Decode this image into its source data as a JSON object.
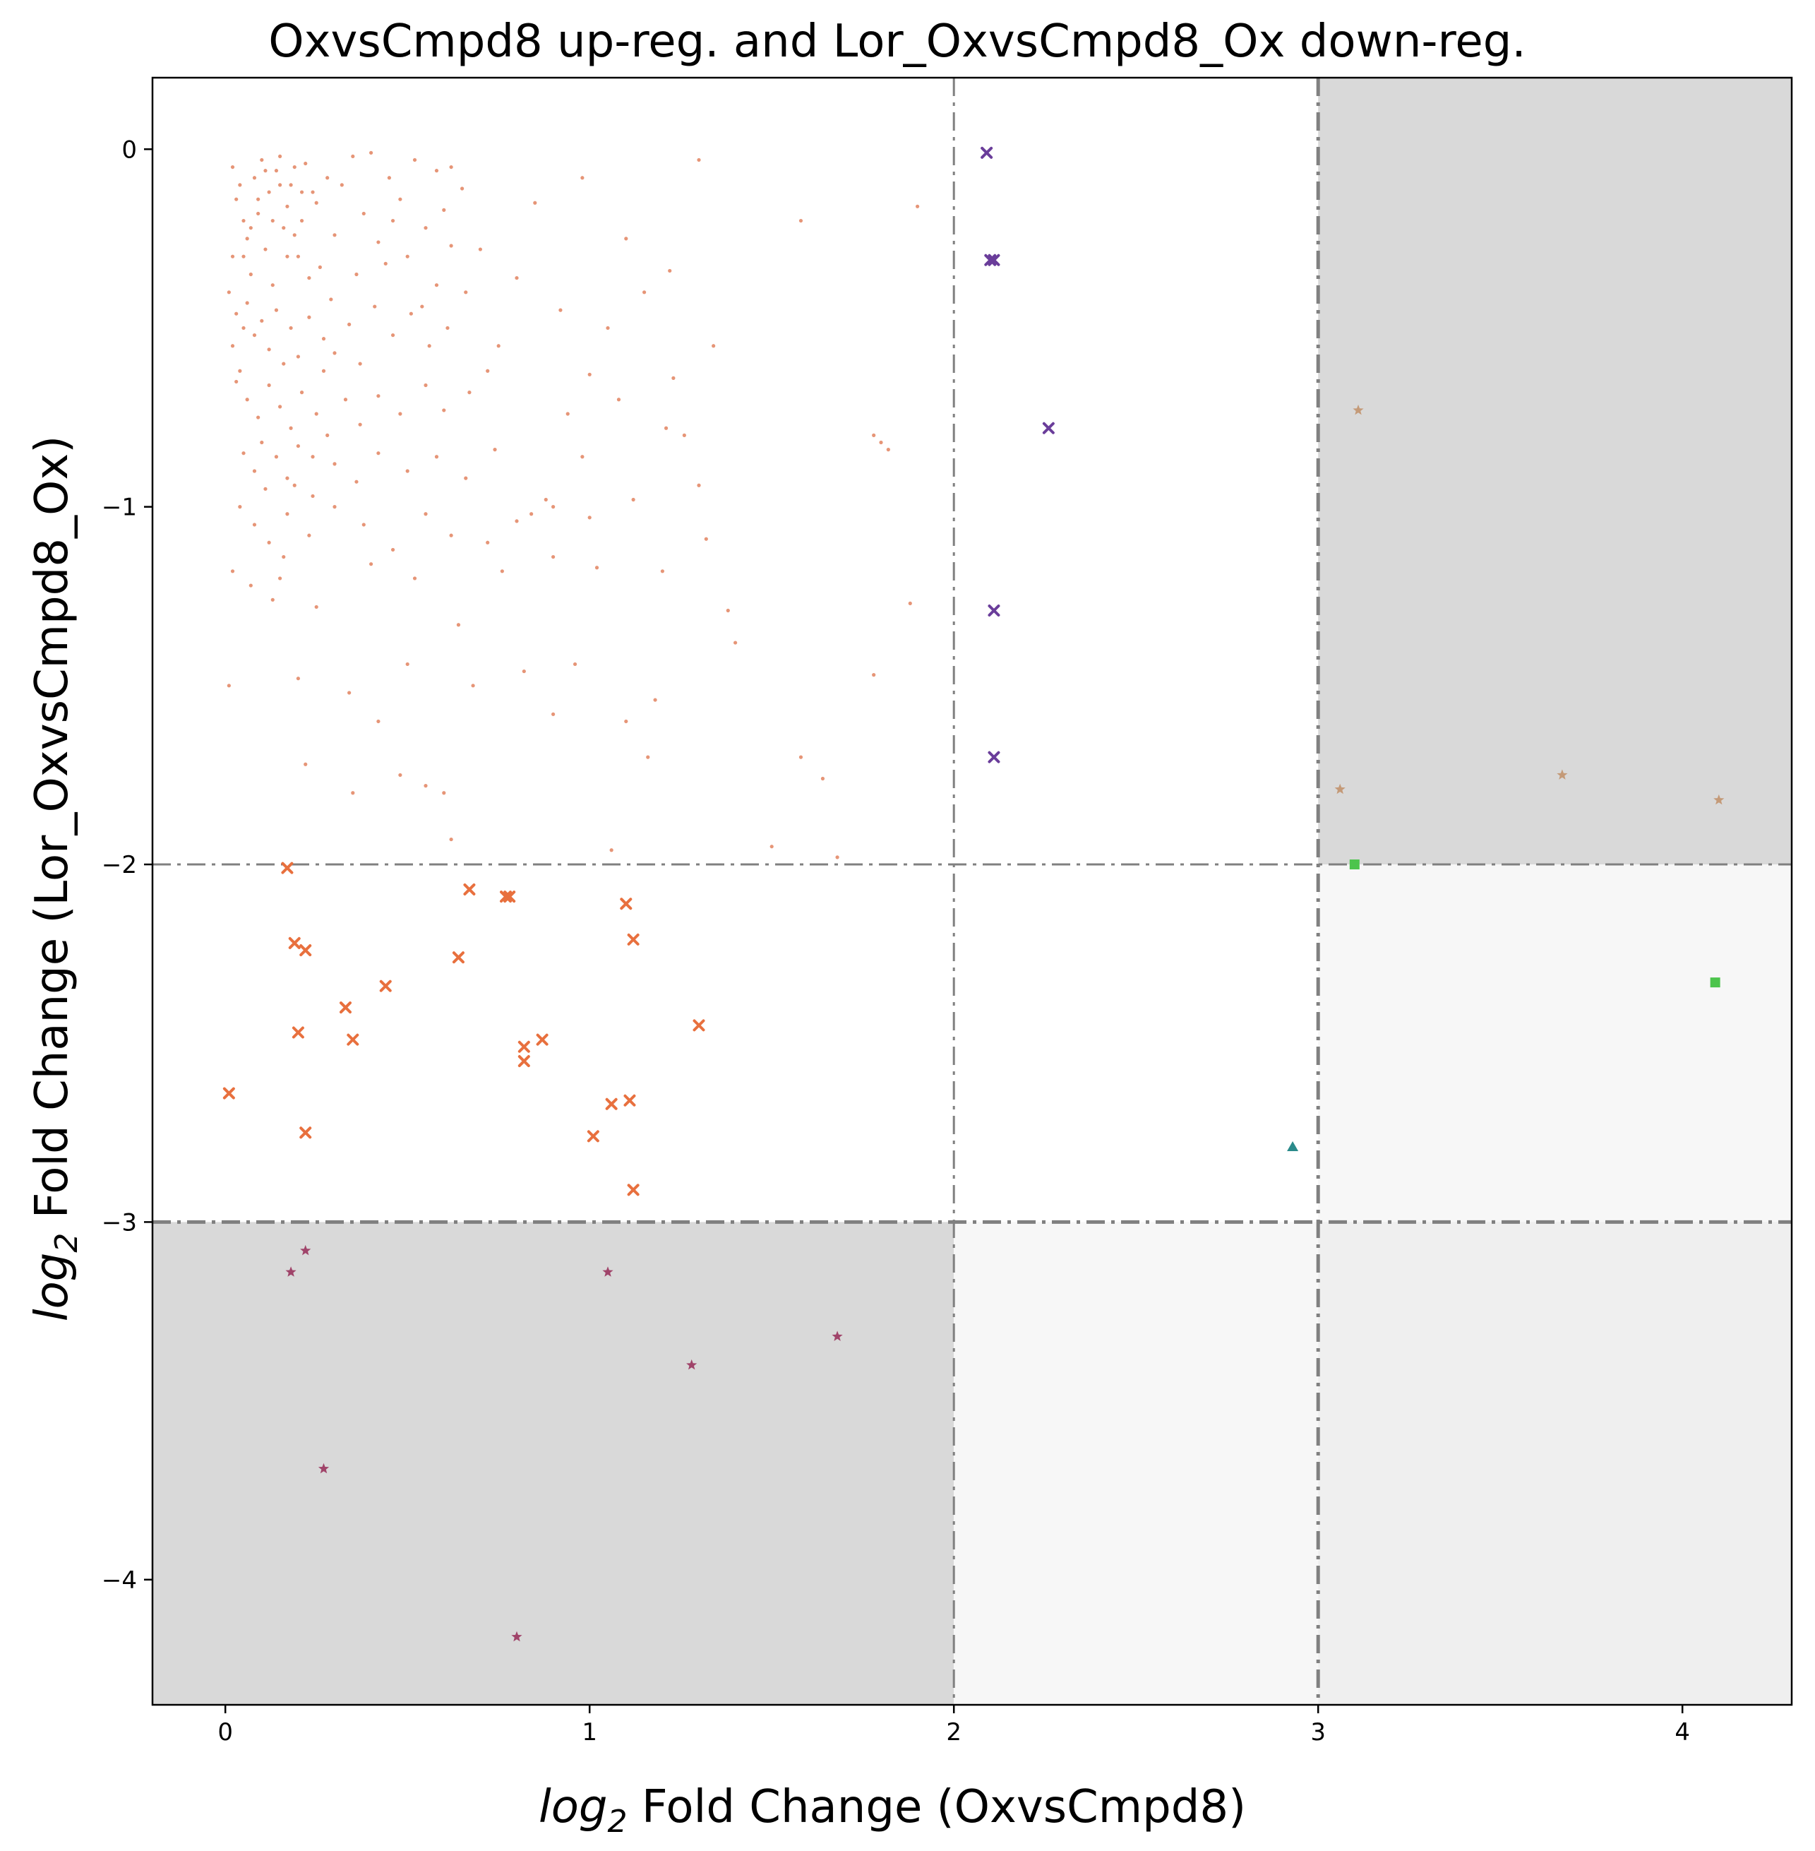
{
  "chart_data": {
    "type": "scatter",
    "title": "OxvsCmpd8 up-reg. and Lor_OxvsCmpd8_Ox down-reg.",
    "xlabel_prefix": "log",
    "xlabel_sub": "2",
    "xlabel_rest": " Fold Change (OxvsCmpd8)",
    "ylabel_prefix": "log",
    "ylabel_sub": "2",
    "ylabel_rest": " Fold Change (Lor_OxvsCmpd8_Ox)",
    "xlim": [
      -0.2,
      4.3
    ],
    "ylim": [
      -4.35,
      0.2
    ],
    "x_ticks": [
      0,
      1,
      2,
      3,
      4
    ],
    "x_tick_labels": [
      "0",
      "1",
      "2",
      "3",
      "4"
    ],
    "y_ticks": [
      0,
      -1,
      -2,
      -3,
      -4
    ],
    "y_tick_labels": [
      "0",
      "−1",
      "−2",
      "−3",
      "−4"
    ],
    "grid": false,
    "vlines": [
      {
        "x": 2,
        "style": "dashdot",
        "weight": "thin"
      },
      {
        "x": 3,
        "style": "dashdot",
        "weight": "thick"
      }
    ],
    "hlines": [
      {
        "y": -2,
        "style": "dashdot",
        "weight": "thin"
      },
      {
        "y": -3,
        "style": "dashdot",
        "weight": "thick"
      }
    ],
    "regions": [
      {
        "x0": 3,
        "x1": 4.3,
        "y0": -2,
        "y1": 0.2,
        "color": "#d9d9d9"
      },
      {
        "x0": -0.2,
        "x1": 2,
        "y0": -4.35,
        "y1": -3,
        "color": "#d9d9d9"
      },
      {
        "x0": 3,
        "x1": 4.3,
        "y0": -3,
        "y1": -2,
        "color": "#f7f7f7"
      },
      {
        "x0": 2,
        "x1": 3,
        "y0": -4.35,
        "y1": -3,
        "color": "#f7f7f7"
      },
      {
        "x0": 3,
        "x1": 4.3,
        "y0": -4.35,
        "y1": -3,
        "color": "#efefef"
      }
    ],
    "series": [
      {
        "marker": "dot",
        "color": "#e07a55",
        "points": [
          [
            0.02,
            -0.05
          ],
          [
            0.04,
            -0.1
          ],
          [
            0.03,
            -0.14
          ],
          [
            0.05,
            -0.2
          ],
          [
            0.06,
            -0.25
          ],
          [
            0.02,
            -0.3
          ],
          [
            0.08,
            -0.08
          ],
          [
            0.1,
            -0.03
          ],
          [
            0.12,
            -0.12
          ],
          [
            0.09,
            -0.18
          ],
          [
            0.14,
            -0.06
          ],
          [
            0.16,
            -0.22
          ],
          [
            0.18,
            -0.1
          ],
          [
            0.2,
            -0.3
          ],
          [
            0.22,
            -0.04
          ],
          [
            0.25,
            -0.15
          ],
          [
            0.28,
            -0.08
          ],
          [
            0.3,
            -0.24
          ],
          [
            0.07,
            -0.35
          ],
          [
            0.11,
            -0.28
          ],
          [
            0.13,
            -0.38
          ],
          [
            0.15,
            -0.02
          ],
          [
            0.17,
            -0.16
          ],
          [
            0.19,
            -0.05
          ],
          [
            0.21,
            -0.2
          ],
          [
            0.24,
            -0.12
          ],
          [
            0.26,
            -0.33
          ],
          [
            0.29,
            -0.42
          ],
          [
            0.32,
            -0.1
          ],
          [
            0.35,
            -0.02
          ],
          [
            0.38,
            -0.18
          ],
          [
            0.4,
            -0.01
          ],
          [
            0.42,
            -0.26
          ],
          [
            0.45,
            -0.08
          ],
          [
            0.48,
            -0.14
          ],
          [
            0.5,
            -0.3
          ],
          [
            0.52,
            -0.03
          ],
          [
            0.55,
            -0.22
          ],
          [
            0.58,
            -0.06
          ],
          [
            0.6,
            -0.17
          ],
          [
            0.62,
            -0.27
          ],
          [
            0.65,
            -0.11
          ],
          [
            0.01,
            -0.4
          ],
          [
            0.03,
            -0.46
          ],
          [
            0.05,
            -0.5
          ],
          [
            0.02,
            -0.55
          ],
          [
            0.04,
            -0.62
          ],
          [
            0.06,
            -0.43
          ],
          [
            0.08,
            -0.52
          ],
          [
            0.1,
            -0.48
          ],
          [
            0.12,
            -0.56
          ],
          [
            0.14,
            -0.45
          ],
          [
            0.16,
            -0.6
          ],
          [
            0.18,
            -0.5
          ],
          [
            0.2,
            -0.58
          ],
          [
            0.23,
            -0.47
          ],
          [
            0.27,
            -0.53
          ],
          [
            0.3,
            -0.57
          ],
          [
            0.34,
            -0.49
          ],
          [
            0.37,
            -0.6
          ],
          [
            0.41,
            -0.44
          ],
          [
            0.46,
            -0.52
          ],
          [
            0.51,
            -0.46
          ],
          [
            0.56,
            -0.55
          ],
          [
            0.61,
            -0.5
          ],
          [
            0.03,
            -0.65
          ],
          [
            0.06,
            -0.7
          ],
          [
            0.09,
            -0.75
          ],
          [
            0.12,
            -0.66
          ],
          [
            0.15,
            -0.72
          ],
          [
            0.18,
            -0.78
          ],
          [
            0.21,
            -0.68
          ],
          [
            0.25,
            -0.74
          ],
          [
            0.28,
            -0.8
          ],
          [
            0.33,
            -0.7
          ],
          [
            0.37,
            -0.77
          ],
          [
            0.42,
            -0.69
          ],
          [
            0.48,
            -0.74
          ],
          [
            0.55,
            -0.66
          ],
          [
            0.6,
            -0.73
          ],
          [
            0.67,
            -0.68
          ],
          [
            0.72,
            -0.62
          ],
          [
            0.05,
            -0.85
          ],
          [
            0.08,
            -0.9
          ],
          [
            0.11,
            -0.95
          ],
          [
            0.14,
            -0.86
          ],
          [
            0.17,
            -0.92
          ],
          [
            0.2,
            -0.83
          ],
          [
            0.24,
            -0.97
          ],
          [
            0.3,
            -0.88
          ],
          [
            0.36,
            -0.93
          ],
          [
            0.42,
            -0.85
          ],
          [
            0.5,
            -0.9
          ],
          [
            0.58,
            -0.86
          ],
          [
            0.66,
            -0.92
          ],
          [
            0.74,
            -0.84
          ],
          [
            0.04,
            -1.0
          ],
          [
            0.08,
            -1.05
          ],
          [
            0.12,
            -1.1
          ],
          [
            0.17,
            -1.02
          ],
          [
            0.23,
            -1.08
          ],
          [
            0.3,
            -1.0
          ],
          [
            0.38,
            -1.05
          ],
          [
            0.46,
            -1.12
          ],
          [
            0.55,
            -1.02
          ],
          [
            0.62,
            -1.08
          ],
          [
            0.72,
            -1.1
          ],
          [
            0.8,
            -1.04
          ],
          [
            0.9,
            -1.0
          ],
          [
            1.0,
            -1.03
          ],
          [
            0.02,
            -1.18
          ],
          [
            0.07,
            -1.22
          ],
          [
            0.15,
            -1.2
          ],
          [
            0.25,
            -1.28
          ],
          [
            0.4,
            -1.16
          ],
          [
            0.52,
            -1.2
          ],
          [
            0.64,
            -1.33
          ],
          [
            0.76,
            -1.18
          ],
          [
            0.9,
            -1.14
          ],
          [
            1.02,
            -1.17
          ],
          [
            1.2,
            -1.18
          ],
          [
            0.01,
            -1.5
          ],
          [
            0.2,
            -1.48
          ],
          [
            0.34,
            -1.52
          ],
          [
            0.5,
            -1.44
          ],
          [
            0.68,
            -1.5
          ],
          [
            0.82,
            -1.46
          ],
          [
            0.96,
            -1.44
          ],
          [
            1.1,
            -1.6
          ],
          [
            1.18,
            -1.54
          ],
          [
            0.42,
            -1.6
          ],
          [
            0.55,
            -1.78
          ],
          [
            0.6,
            -1.8
          ],
          [
            0.48,
            -1.75
          ],
          [
            0.35,
            -1.8
          ],
          [
            0.22,
            -1.72
          ],
          [
            0.62,
            -1.93
          ],
          [
            0.9,
            -1.58
          ],
          [
            1.16,
            -1.7
          ],
          [
            1.06,
            -1.96
          ],
          [
            1.5,
            -1.95
          ],
          [
            1.68,
            -1.98
          ],
          [
            1.64,
            -1.76
          ],
          [
            1.58,
            -1.7
          ],
          [
            1.78,
            -1.47
          ],
          [
            1.4,
            -1.38
          ],
          [
            1.38,
            -1.29
          ],
          [
            1.88,
            -1.27
          ],
          [
            1.32,
            -1.09
          ],
          [
            1.82,
            -0.84
          ],
          [
            1.8,
            -0.82
          ],
          [
            1.78,
            -0.8
          ],
          [
            1.58,
            -0.2
          ],
          [
            1.9,
            -0.16
          ],
          [
            1.3,
            -0.03
          ],
          [
            1.22,
            -0.34
          ],
          [
            1.3,
            -0.94
          ],
          [
            1.23,
            -0.64
          ],
          [
            1.15,
            -0.4
          ],
          [
            1.1,
            -0.25
          ],
          [
            1.05,
            -0.5
          ],
          [
            0.98,
            -0.08
          ],
          [
            0.92,
            -0.45
          ],
          [
            0.85,
            -0.15
          ],
          [
            0.8,
            -0.36
          ],
          [
            0.75,
            -0.55
          ],
          [
            0.7,
            -0.28
          ],
          [
            0.66,
            -0.4
          ],
          [
            0.62,
            -0.05
          ],
          [
            0.58,
            -0.38
          ],
          [
            0.54,
            -0.44
          ],
          [
            0.46,
            -0.2
          ],
          [
            0.44,
            -0.32
          ],
          [
            0.36,
            -0.35
          ],
          [
            0.27,
            -0.62
          ],
          [
            0.24,
            -0.86
          ],
          [
            0.19,
            -0.94
          ],
          [
            0.13,
            -1.26
          ],
          [
            0.16,
            -1.14
          ],
          [
            0.1,
            -0.82
          ],
          [
            0.05,
            -0.3
          ],
          [
            0.07,
            -0.22
          ],
          [
            0.09,
            -0.14
          ],
          [
            0.11,
            -0.06
          ],
          [
            0.13,
            -0.2
          ],
          [
            0.15,
            -0.1
          ],
          [
            0.17,
            -0.3
          ],
          [
            0.19,
            -0.24
          ],
          [
            0.21,
            -0.12
          ],
          [
            0.23,
            -0.36
          ],
          [
            1.34,
            -0.55
          ],
          [
            1.21,
            -0.78
          ],
          [
            1.08,
            -0.7
          ],
          [
            1.0,
            -0.63
          ],
          [
            0.94,
            -0.74
          ],
          [
            0.88,
            -0.98
          ],
          [
            0.84,
            -1.02
          ],
          [
            1.12,
            -0.98
          ],
          [
            1.26,
            -0.8
          ],
          [
            0.98,
            -0.86
          ]
        ]
      },
      {
        "marker": "x",
        "color": "#e8703e",
        "points": [
          [
            0.01,
            -2.64
          ],
          [
            0.17,
            -2.01
          ],
          [
            0.19,
            -2.22
          ],
          [
            0.22,
            -2.24
          ],
          [
            0.2,
            -2.47
          ],
          [
            0.22,
            -2.75
          ],
          [
            0.33,
            -2.4
          ],
          [
            0.35,
            -2.49
          ],
          [
            0.44,
            -2.34
          ],
          [
            0.64,
            -2.26
          ],
          [
            0.67,
            -2.07
          ],
          [
            0.77,
            -2.09
          ],
          [
            0.78,
            -2.09
          ],
          [
            0.82,
            -2.51
          ],
          [
            0.82,
            -2.55
          ],
          [
            0.87,
            -2.49
          ],
          [
            1.01,
            -2.76
          ],
          [
            1.06,
            -2.67
          ],
          [
            1.1,
            -2.11
          ],
          [
            1.11,
            -2.66
          ],
          [
            1.12,
            -2.21
          ],
          [
            1.12,
            -2.91
          ],
          [
            1.3,
            -2.45
          ]
        ]
      },
      {
        "marker": "x",
        "color": "#6a3d9a",
        "points": [
          [
            2.09,
            -0.01
          ],
          [
            2.1,
            -0.31
          ],
          [
            2.11,
            -0.31
          ],
          [
            2.26,
            -0.78
          ],
          [
            2.11,
            -1.29
          ],
          [
            2.11,
            -1.7
          ]
        ]
      },
      {
        "marker": "star",
        "color": "#c49a78",
        "points": [
          [
            3.11,
            -0.73
          ],
          [
            3.06,
            -1.79
          ],
          [
            3.67,
            -1.75
          ],
          [
            4.1,
            -1.82
          ]
        ]
      },
      {
        "marker": "square",
        "color": "#4cc44c",
        "points": [
          [
            3.1,
            -2.0
          ],
          [
            4.09,
            -2.33
          ]
        ]
      },
      {
        "marker": "triangle",
        "color": "#2a8a8a",
        "points": [
          [
            2.93,
            -2.79
          ]
        ]
      },
      {
        "marker": "star",
        "color": "#a0446a",
        "points": [
          [
            0.18,
            -3.14
          ],
          [
            0.22,
            -3.08
          ],
          [
            1.05,
            -3.14
          ],
          [
            1.28,
            -3.4
          ],
          [
            1.68,
            -3.32
          ],
          [
            0.27,
            -3.69
          ],
          [
            0.8,
            -4.16
          ]
        ]
      }
    ]
  }
}
